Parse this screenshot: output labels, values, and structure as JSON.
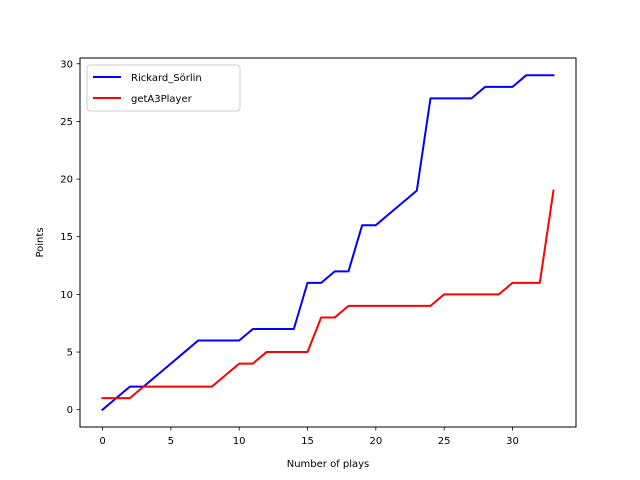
{
  "chart_data": {
    "type": "line",
    "title": "",
    "xlabel": "Number of plays",
    "ylabel": "Points",
    "xlim": [
      -1.65,
      34.65
    ],
    "ylim": [
      -1.5,
      30.5
    ],
    "xticks": [
      0,
      5,
      10,
      15,
      20,
      25,
      30
    ],
    "yticks": [
      0,
      5,
      10,
      15,
      20,
      25,
      30
    ],
    "grid": false,
    "legend_position": "top-left",
    "series": [
      {
        "name": "Rickard_Sörlin",
        "color": "#0000ff",
        "x": [
          0,
          1,
          2,
          3,
          4,
          5,
          6,
          7,
          8,
          9,
          10,
          11,
          12,
          13,
          14,
          15,
          16,
          17,
          18,
          19,
          20,
          21,
          22,
          23,
          24,
          25,
          26,
          27,
          28,
          29,
          30,
          31,
          32,
          33
        ],
        "values": [
          0,
          1,
          2,
          2,
          3,
          4,
          5,
          6,
          6,
          6,
          6,
          7,
          7,
          7,
          7,
          11,
          11,
          12,
          12,
          16,
          16,
          17,
          18,
          19,
          27,
          27,
          27,
          27,
          28,
          28,
          28,
          29,
          29,
          29
        ]
      },
      {
        "name": "getA3Player",
        "color": "#ff0000",
        "x": [
          0,
          1,
          2,
          3,
          4,
          5,
          6,
          7,
          8,
          9,
          10,
          11,
          12,
          13,
          14,
          15,
          16,
          17,
          18,
          19,
          20,
          21,
          22,
          23,
          24,
          25,
          26,
          27,
          28,
          29,
          30,
          31,
          32,
          33
        ],
        "values": [
          1,
          1,
          1,
          2,
          2,
          2,
          2,
          2,
          2,
          3,
          4,
          4,
          5,
          5,
          5,
          5,
          8,
          8,
          9,
          9,
          9,
          9,
          9,
          9,
          9,
          10,
          10,
          10,
          10,
          10,
          11,
          11,
          11,
          19
        ]
      }
    ]
  }
}
